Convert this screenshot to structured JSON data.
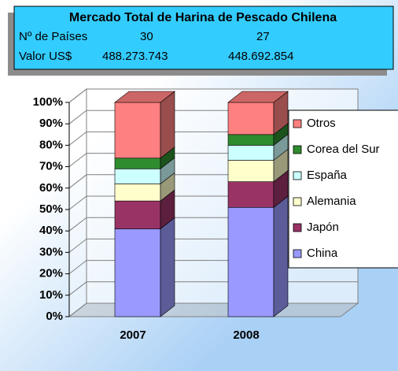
{
  "info_box": {
    "title": "Mercado Total de Harina de Pescado Chilena",
    "rows": [
      [
        "Nº de Países",
        "30",
        "27"
      ],
      [
        "Valor US$",
        "488.273.743",
        "448.692.854"
      ]
    ]
  },
  "chart_data": {
    "type": "stacked_bar_3d",
    "categories": [
      "2007",
      "2008"
    ],
    "series": [
      {
        "name": "China",
        "color": "#9999ff",
        "values": [
          41,
          51
        ]
      },
      {
        "name": "Japón",
        "color": "#993366",
        "values": [
          13,
          12
        ]
      },
      {
        "name": "Alemania",
        "color": "#ffffcc",
        "values": [
          8,
          10
        ]
      },
      {
        "name": "España",
        "color": "#ccffff",
        "values": [
          7,
          7
        ]
      },
      {
        "name": "Corea del Sur",
        "color": "#2e8b2e",
        "values": [
          5,
          5
        ]
      },
      {
        "name": "Otros",
        "color": "#ff8080",
        "values": [
          26,
          15
        ]
      }
    ],
    "ylim": [
      0,
      100
    ],
    "yticks": [
      {
        "value": 0,
        "label": "0%"
      },
      {
        "value": 10,
        "label": "10%"
      },
      {
        "value": 20,
        "label": "20%"
      },
      {
        "value": 30,
        "label": "30%"
      },
      {
        "value": 40,
        "label": "40%"
      },
      {
        "value": 50,
        "label": "50%"
      },
      {
        "value": 60,
        "label": "60%"
      },
      {
        "value": 70,
        "label": "70%"
      },
      {
        "value": 80,
        "label": "80%"
      },
      {
        "value": 90,
        "label": "90%"
      },
      {
        "value": 100,
        "label": "100%"
      }
    ],
    "grid": true,
    "legend": "right"
  }
}
